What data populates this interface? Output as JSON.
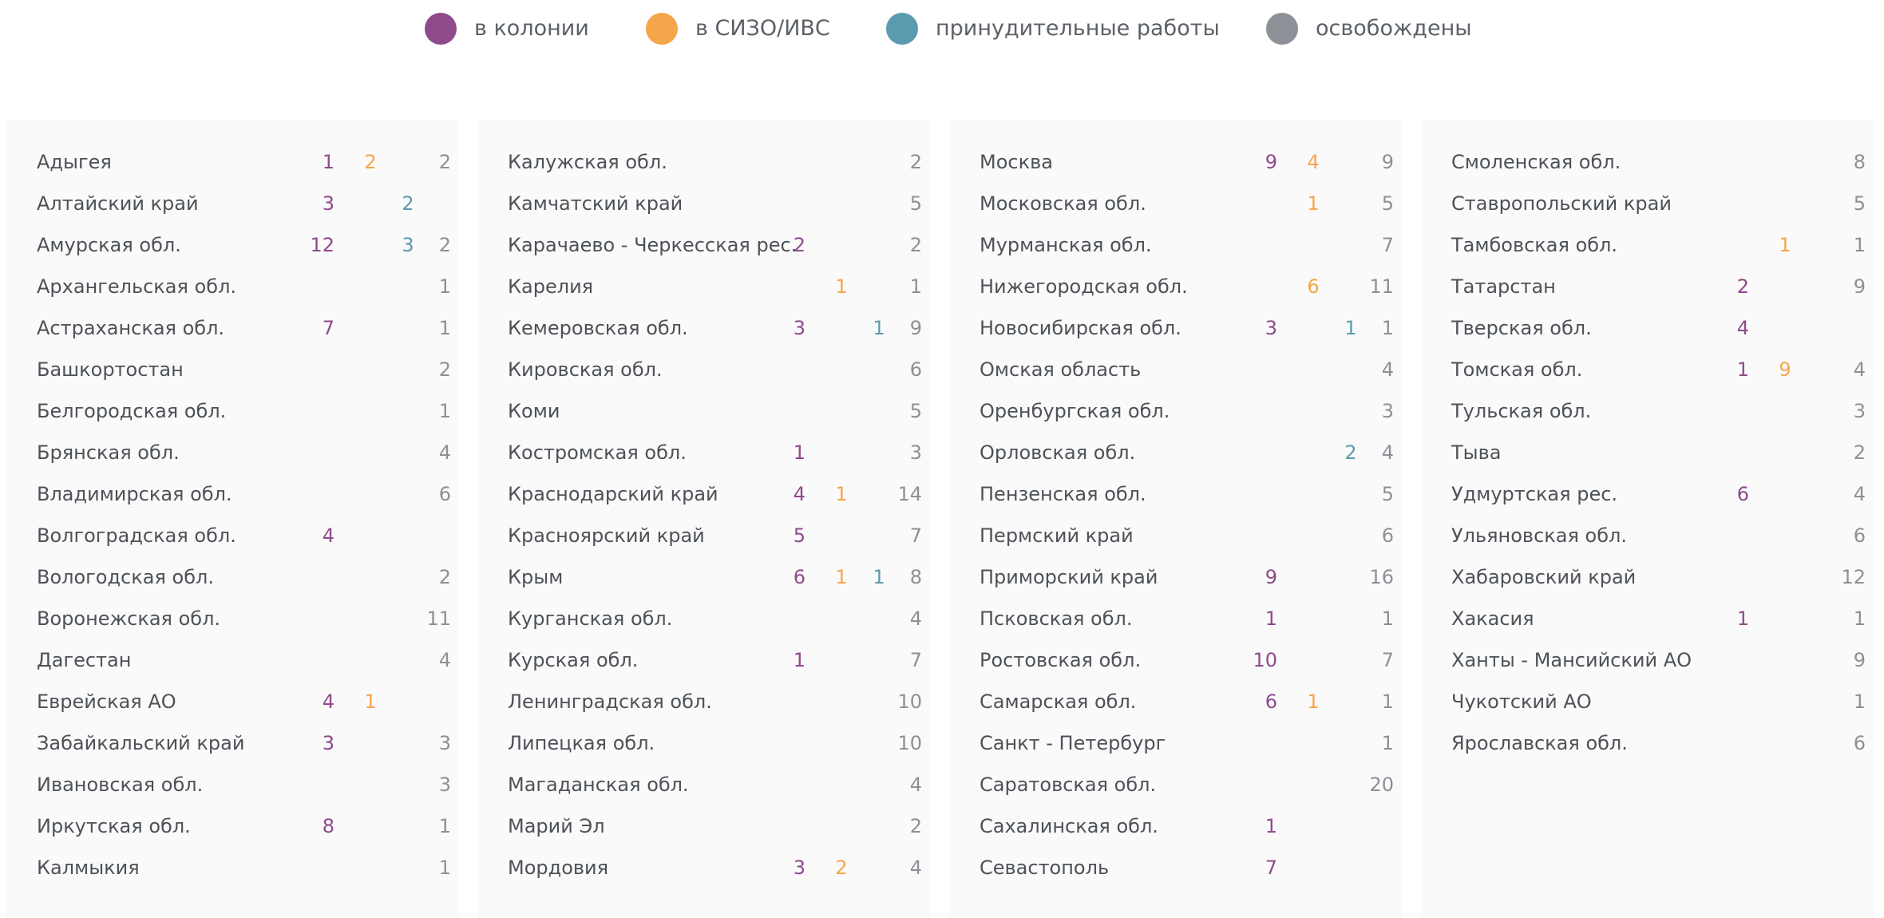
{
  "legend": [
    {
      "label": "в колонии",
      "color": "#8f4a8c"
    },
    {
      "label": "в СИЗО/ИВС",
      "color": "#f5a54a"
    },
    {
      "label": "принудительные работы",
      "color": "#5b9bb0"
    },
    {
      "label": "освобождены",
      "color": "#8d9096"
    }
  ],
  "panels": [
    {
      "rows": [
        {
          "region": "Адыгея",
          "values": [
            1,
            2,
            null,
            2
          ]
        },
        {
          "region": "Алтайский край",
          "values": [
            3,
            null,
            2,
            null
          ]
        },
        {
          "region": "Амурская обл.",
          "values": [
            12,
            null,
            3,
            2
          ]
        },
        {
          "region": "Архангельская обл.",
          "values": [
            null,
            null,
            null,
            1
          ]
        },
        {
          "region": "Астраханская обл.",
          "values": [
            7,
            null,
            null,
            1
          ]
        },
        {
          "region": "Башкортостан",
          "values": [
            null,
            null,
            null,
            2
          ]
        },
        {
          "region": "Белгородская обл.",
          "values": [
            null,
            null,
            null,
            1
          ]
        },
        {
          "region": "Брянская обл.",
          "values": [
            null,
            null,
            null,
            4
          ]
        },
        {
          "region": "Владимирская обл.",
          "values": [
            null,
            null,
            null,
            6
          ]
        },
        {
          "region": "Волгоградская обл.",
          "values": [
            4,
            null,
            null,
            null
          ]
        },
        {
          "region": "Вологодская обл.",
          "values": [
            null,
            null,
            null,
            2
          ]
        },
        {
          "region": "Воронежская обл.",
          "values": [
            null,
            null,
            null,
            11
          ]
        },
        {
          "region": "Дагестан",
          "values": [
            null,
            null,
            null,
            4
          ]
        },
        {
          "region": "Еврейская АО",
          "values": [
            4,
            1,
            null,
            null
          ]
        },
        {
          "region": "Забайкальский край",
          "values": [
            3,
            null,
            null,
            3
          ]
        },
        {
          "region": "Ивановская обл.",
          "values": [
            null,
            null,
            null,
            3
          ]
        },
        {
          "region": "Иркутская обл.",
          "values": [
            8,
            null,
            null,
            1
          ]
        },
        {
          "region": "Калмыкия",
          "values": [
            null,
            null,
            null,
            1
          ]
        }
      ]
    },
    {
      "rows": [
        {
          "region": "Калужская обл.",
          "values": [
            null,
            null,
            null,
            2
          ]
        },
        {
          "region": "Камчатский край",
          "values": [
            null,
            null,
            null,
            5
          ]
        },
        {
          "region": "Карачаево - Черкесская рес.",
          "values": [
            2,
            null,
            null,
            2
          ]
        },
        {
          "region": "Карелия",
          "values": [
            null,
            1,
            null,
            1
          ]
        },
        {
          "region": "Кемеровская обл.",
          "values": [
            3,
            null,
            1,
            9
          ]
        },
        {
          "region": "Кировская обл.",
          "values": [
            null,
            null,
            null,
            6
          ]
        },
        {
          "region": "Коми",
          "values": [
            null,
            null,
            null,
            5
          ]
        },
        {
          "region": "Костромская обл.",
          "values": [
            1,
            null,
            null,
            3
          ]
        },
        {
          "region": "Краснодарский край",
          "values": [
            4,
            1,
            null,
            14
          ]
        },
        {
          "region": "Красноярский край",
          "values": [
            5,
            null,
            null,
            7
          ]
        },
        {
          "region": "Крым",
          "values": [
            6,
            1,
            1,
            8
          ]
        },
        {
          "region": "Курганская обл.",
          "values": [
            null,
            null,
            null,
            4
          ]
        },
        {
          "region": "Курская обл.",
          "values": [
            1,
            null,
            null,
            7
          ]
        },
        {
          "region": "Ленинградская обл.",
          "values": [
            null,
            null,
            null,
            10
          ]
        },
        {
          "region": "Липецкая обл.",
          "values": [
            null,
            null,
            null,
            10
          ]
        },
        {
          "region": "Магаданская обл.",
          "values": [
            null,
            null,
            null,
            4
          ]
        },
        {
          "region": "Марий Эл",
          "values": [
            null,
            null,
            null,
            2
          ]
        },
        {
          "region": "Мордовия",
          "values": [
            3,
            2,
            null,
            4
          ]
        }
      ]
    },
    {
      "rows": [
        {
          "region": "Москва",
          "values": [
            9,
            4,
            null,
            9
          ]
        },
        {
          "region": "Московская обл.",
          "values": [
            null,
            1,
            null,
            5
          ]
        },
        {
          "region": "Мурманская обл.",
          "values": [
            null,
            null,
            null,
            7
          ]
        },
        {
          "region": "Нижегородская обл.",
          "values": [
            null,
            6,
            null,
            11
          ]
        },
        {
          "region": "Новосибирская обл.",
          "values": [
            3,
            null,
            1,
            1
          ]
        },
        {
          "region": "Омская область",
          "values": [
            null,
            null,
            null,
            4
          ]
        },
        {
          "region": "Оренбургская обл.",
          "values": [
            null,
            null,
            null,
            3
          ]
        },
        {
          "region": "Орловская обл.",
          "values": [
            null,
            null,
            2,
            4
          ]
        },
        {
          "region": "Пензенская обл.",
          "values": [
            null,
            null,
            null,
            5
          ]
        },
        {
          "region": "Пермский край",
          "values": [
            null,
            null,
            null,
            6
          ]
        },
        {
          "region": "Приморский край",
          "values": [
            9,
            null,
            null,
            16
          ]
        },
        {
          "region": "Псковская обл.",
          "values": [
            1,
            null,
            null,
            1
          ]
        },
        {
          "region": "Ростовская обл.",
          "values": [
            10,
            null,
            null,
            7
          ]
        },
        {
          "region": "Самарская обл.",
          "values": [
            6,
            1,
            null,
            1
          ]
        },
        {
          "region": "Санкт - Петербург",
          "values": [
            null,
            null,
            null,
            1
          ]
        },
        {
          "region": "Саратовская обл.",
          "values": [
            null,
            null,
            null,
            20
          ]
        },
        {
          "region": "Сахалинская обл.",
          "values": [
            1,
            null,
            null,
            null
          ]
        },
        {
          "region": "Севастополь",
          "values": [
            7,
            null,
            null,
            null
          ]
        }
      ]
    },
    {
      "rows": [
        {
          "region": "Смоленская обл.",
          "values": [
            null,
            null,
            null,
            8
          ]
        },
        {
          "region": "Ставропольский край",
          "values": [
            null,
            null,
            null,
            5
          ]
        },
        {
          "region": "Тамбовская обл.",
          "values": [
            null,
            1,
            null,
            1
          ]
        },
        {
          "region": "Татарстан",
          "values": [
            2,
            null,
            null,
            9
          ]
        },
        {
          "region": "Тверская обл.",
          "values": [
            4,
            null,
            null,
            null
          ]
        },
        {
          "region": "Томская обл.",
          "values": [
            1,
            9,
            null,
            4
          ]
        },
        {
          "region": "Тульская обл.",
          "values": [
            null,
            null,
            null,
            3
          ]
        },
        {
          "region": "Тыва",
          "values": [
            null,
            null,
            null,
            2
          ]
        },
        {
          "region": "Удмуртская рес.",
          "values": [
            6,
            null,
            null,
            4
          ]
        },
        {
          "region": "Ульяновская обл.",
          "values": [
            null,
            null,
            null,
            6
          ]
        },
        {
          "region": "Хабаровский край",
          "values": [
            null,
            null,
            null,
            12
          ]
        },
        {
          "region": "Хакасия",
          "values": [
            1,
            null,
            null,
            1
          ]
        },
        {
          "region": "Ханты - Мансийский АО",
          "values": [
            null,
            null,
            null,
            9
          ]
        },
        {
          "region": "Чукотский АО",
          "values": [
            null,
            null,
            null,
            1
          ]
        },
        {
          "region": "Ярославская обл.",
          "values": [
            null,
            null,
            null,
            6
          ]
        }
      ]
    }
  ]
}
